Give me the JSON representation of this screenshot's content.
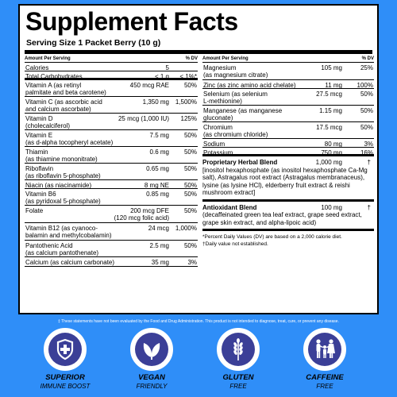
{
  "title": "Supplement Facts",
  "serving_size": "Serving Size 1 Packet Berry (10 g)",
  "header": {
    "amount": "Amount Per Serving",
    "dv": "% DV"
  },
  "left_rows": [
    {
      "name": "Calories",
      "sub": "",
      "amount": "5",
      "dv": ""
    },
    {
      "name": "Total Carbohydrates",
      "sub": "",
      "amount": "< 1 g",
      "dv": "< 1%*"
    },
    {
      "name": "Vitamin A (as retinyl",
      "sub": "palmitate and beta carotene)",
      "amount": "450 mcg RAE",
      "dv": "50%"
    },
    {
      "name": "Vitamin C (as ascorbic acid",
      "sub": "and calcium ascorbate)",
      "amount": "1,350 mg",
      "dv": "1,500%"
    },
    {
      "name": "Vitamin D",
      "sub": "(cholecalciferol)",
      "amount": "25 mcg (1,000 IU)",
      "dv": "125%"
    },
    {
      "name": "Vitamin E",
      "sub": "(as d-alpha tocopheryl acetate)",
      "amount": "7.5 mg",
      "dv": "50%"
    },
    {
      "name": "Thiamin",
      "sub": "(as thiamine mononitrate)",
      "amount": "0.6 mg",
      "dv": "50%"
    },
    {
      "name": "Riboflavin",
      "sub": "(as riboflavin 5-phosphate)",
      "amount": "0.65 mg",
      "dv": "50%"
    },
    {
      "name": "Niacin (as niacinamide)",
      "sub": "",
      "amount": "8 mg NE",
      "dv": "50%"
    },
    {
      "name": "Vitamin B6",
      "sub": "(as pyridoxal 5-phosphate)",
      "amount": "0.85 mg",
      "dv": "50%"
    },
    {
      "name": "Folate",
      "sub": "",
      "amount": "200 mcg DFE",
      "amount2": "(120 mcg folic acid)",
      "dv": "50%"
    },
    {
      "name": "Vitamin B12 (as cyanoco-",
      "sub": "balamin and methylcobalamin)",
      "amount": "24 mcg",
      "dv": "1,000%"
    },
    {
      "name": "Pantothenic Acid",
      "sub": "(as calcium pantothenate)",
      "amount": "2.5 mg",
      "dv": "50%"
    },
    {
      "name": "Calcium (as calcium carbonate)",
      "sub": "",
      "amount": "35 mg",
      "dv": "3%"
    }
  ],
  "right_rows": [
    {
      "name": "Magnesium",
      "sub": "(as magnesium citrate)",
      "amount": "105 mg",
      "dv": "25%"
    },
    {
      "name": "Zinc (as zinc amino acid chelate)",
      "sub": "",
      "amount": "11 mg",
      "dv": "100%"
    },
    {
      "name": "Selenium (as selenium",
      "sub": "L-methionine)",
      "amount": "27.5 mcg",
      "dv": "50%"
    },
    {
      "name": "Manganese (as manganese",
      "sub": "gluconate)",
      "amount": "1.15 mg",
      "dv": "50%"
    },
    {
      "name": "Chromium",
      "sub": "(as chromium chloride)",
      "amount": "17.5 mcg",
      "dv": "50%"
    },
    {
      "name": "Sodium",
      "sub": "",
      "amount": "80 mg",
      "dv": "3%"
    },
    {
      "name": "Potassium",
      "sub": "",
      "amount": "750 mg",
      "dv": "16%"
    }
  ],
  "blends": [
    {
      "title": "Proprietary Herbal Blend",
      "amount": "1,000 mg",
      "dv": "†",
      "desc": "[inositol hexaphosphate (as inositol hexaphosphate Ca-Mg salt), Astragalus root extract (Astragalus membranaceus), lysine (as lysine HCl), elderberry fruit extract & reishi mushroom extract]"
    },
    {
      "title": "Antioxidant Blend",
      "amount": "100 mg",
      "dv": "†",
      "desc": "(decaffeinated green tea leaf extract, grape seed extract, grape skin extract, and alpha-lipoic acid)"
    }
  ],
  "footnotes": [
    "*Percent Daily Values (DV) are based on a 2,000 calorie diet.",
    "†Daily value not established."
  ],
  "disclaimer": "‡ These statements have not been evaluated by the Food and Drug Administration. This product is not intended to diagnose, treat, cure, or prevent any disease.",
  "badges": [
    {
      "icon": "shield-cross-icon",
      "line1": "SUPERIOR",
      "line2": "IMMUNE BOOST"
    },
    {
      "icon": "leaves-icon",
      "line1": "VEGAN",
      "line2": "FRIENDLY"
    },
    {
      "icon": "wheat-icon",
      "line1": "GLUTEN",
      "line2": "FREE"
    },
    {
      "icon": "family-icon",
      "line1": "CAFFEINE",
      "line2": "FREE"
    }
  ],
  "colors": {
    "background": "#2f8ef8",
    "icon_fill": "#3b3f97",
    "accent_purple": "#7a2fd0"
  }
}
